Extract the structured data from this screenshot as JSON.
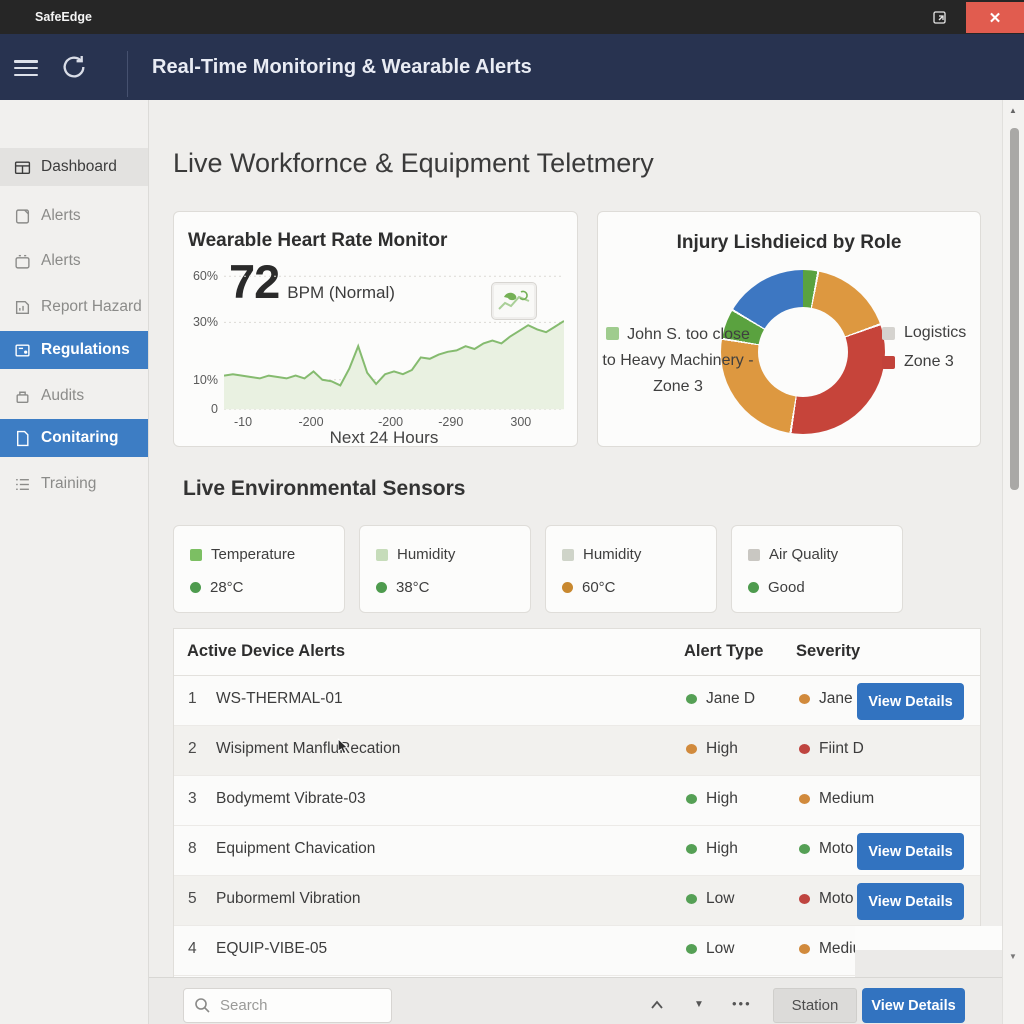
{
  "titlebar": {
    "app": "SafeEdge"
  },
  "header": {
    "title": "Real-Time Monitoring & Wearable Alerts"
  },
  "sidebar": {
    "items": [
      {
        "label": "Dashboard",
        "icon": "dashboard",
        "state": "sel-gray"
      },
      {
        "label": "Alerts",
        "icon": "alert-doc",
        "state": "normal"
      },
      {
        "label": "Alerts",
        "icon": "alert-box",
        "state": "normal"
      },
      {
        "label": "Report Hazard",
        "icon": "report",
        "state": "normal"
      },
      {
        "label": "Regulations",
        "icon": "regulations",
        "state": "sel-blue"
      },
      {
        "label": "Audits",
        "icon": "audits",
        "state": "normal"
      },
      {
        "label": "Conitaring",
        "icon": "document",
        "state": "sel-blue"
      },
      {
        "label": "Training",
        "icon": "training",
        "state": "normal"
      }
    ]
  },
  "main": {
    "title": "Live Workfornce & Equipment Teletmery",
    "sensors": {
      "title": "Live Environmental Sensors",
      "cards": [
        {
          "label": "Temperature",
          "value": "28°C",
          "label_color": "#7cbf63",
          "value_color": "#4e9b4e"
        },
        {
          "label": "Humidity",
          "value": "38°C",
          "label_color": "#c6dcba",
          "value_color": "#4e9b4e"
        },
        {
          "label": "Humidity",
          "value": "60°C",
          "label_color": "#cfd4c9",
          "value_color": "#c8882f"
        },
        {
          "label": "Air Quality",
          "value": "Good",
          "label_color": "#c9c7c2",
          "value_color": "#4e9b4e"
        }
      ]
    },
    "table": {
      "headers": [
        "Active Device Alerts",
        "Alert Type",
        "Severity"
      ],
      "rows": [
        {
          "num": "1",
          "device": "WS-THERMAL-01",
          "alert": "Jane D",
          "alert_color": "#55a055",
          "severity": "Jane D",
          "severity_color": "#d18a3c",
          "button": "View Details",
          "shaded": false,
          "cursor": false
        },
        {
          "num": "2",
          "device": "Wisipment ManfluRecation",
          "alert": "High",
          "alert_color": "#d18a3c",
          "severity": "Fiint D",
          "severity_color": "#bf4540",
          "button": null,
          "shaded": true,
          "cursor": true
        },
        {
          "num": "3",
          "device": "Bodymemt Vibrate-03",
          "alert": "High",
          "alert_color": "#55a055",
          "severity": "Medium",
          "severity_color": "#d18a3c",
          "button": null,
          "shaded": false,
          "cursor": false
        },
        {
          "num": "8",
          "device": "Equipment Chavication",
          "alert": "High",
          "alert_color": "#55a055",
          "severity": "Moto",
          "severity_color": "#55a055",
          "button": "View Details",
          "shaded": false,
          "cursor": false
        },
        {
          "num": "5",
          "device": "Pubormeml Vibration",
          "alert": "Low",
          "alert_color": "#55a055",
          "severity": "Moto",
          "severity_color": "#bf4540",
          "button": "View Details",
          "shaded": true,
          "cursor": false
        },
        {
          "num": "4",
          "device": "EQUIP-VIBE-05",
          "alert": "Low",
          "alert_color": "#55a055",
          "severity": "Medium",
          "severity_color": "#d18a3c",
          "button": null,
          "shaded": false,
          "cursor": false
        }
      ]
    }
  },
  "bottom_bar": {
    "search_placeholder": "Search",
    "station_label": "Station",
    "view_details_label": "View Details",
    "ellipsis": "•••"
  },
  "chart_data": [
    {
      "type": "area",
      "title": "Wearable Heart Rate Monitor",
      "current_value": "72",
      "unit": "BPM (Normal)",
      "y_ticks": [
        "60%",
        "30%",
        "10%",
        "0"
      ],
      "x_ticks": [
        "-10",
        "-200",
        "-200",
        "-290",
        "300"
      ],
      "xlabel": "Next 24 Hours",
      "line_color": "#85bb6f",
      "fill_color": "#e9f1e1",
      "ylim": [
        0,
        100
      ],
      "values": [
        26,
        27,
        26,
        25,
        24,
        26,
        25,
        24,
        26,
        24,
        29,
        23,
        22,
        19,
        31,
        47,
        28,
        20,
        27,
        29,
        27,
        30,
        39,
        38,
        41,
        43,
        44,
        47,
        45,
        49,
        51,
        49,
        54,
        58,
        62,
        59,
        57,
        61,
        65
      ]
    },
    {
      "type": "pie",
      "title": "Injury Lishdieicd by Role",
      "donut": true,
      "segments": [
        {
          "label": "green-sliver",
          "color": "#5aa23f",
          "degrees": 8
        },
        {
          "label": "orange-upper",
          "color": "#dd9840",
          "degrees": 58
        },
        {
          "label": "Zone 3",
          "color": "#c6443a",
          "degrees": 117
        },
        {
          "label": "orange-lower",
          "color": "#dd9840",
          "degrees": 89
        },
        {
          "label": "green",
          "color": "#5aa23f",
          "degrees": 20
        },
        {
          "label": "blue",
          "color": "#3d77c2",
          "degrees": 59
        }
      ],
      "legend_left": {
        "color": "#9fcc8e",
        "label": "John S. too close to Heavy Machinery - Zone 3"
      },
      "legend_right": [
        {
          "color": "#d5d3cf",
          "label": "Logistics"
        },
        {
          "color": "#c2423a",
          "label": "Zone 3"
        }
      ],
      "legend_position": "sides"
    }
  ]
}
